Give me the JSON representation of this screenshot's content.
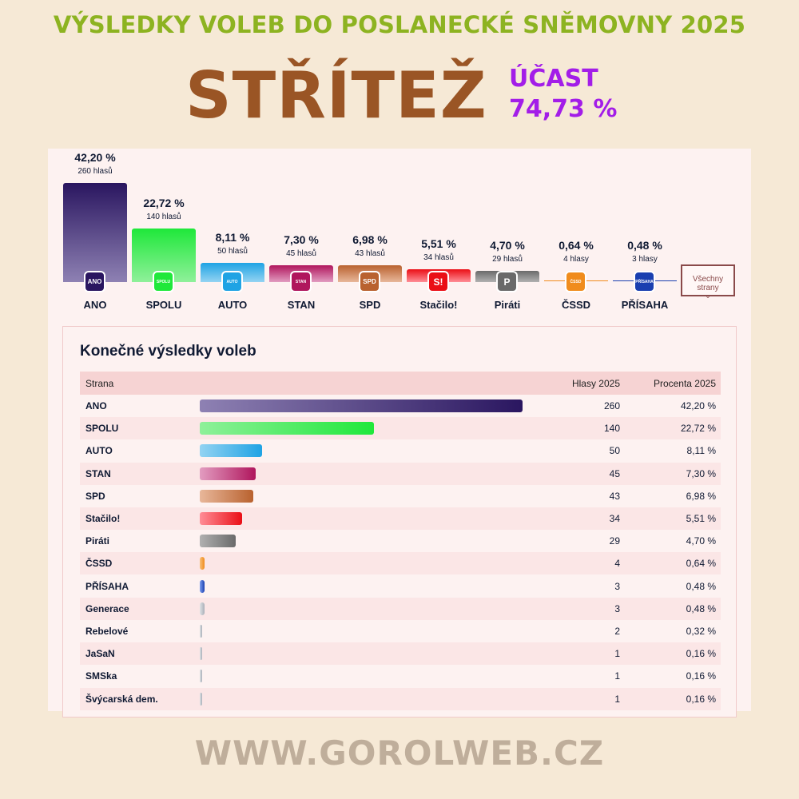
{
  "header": {
    "title": "VÝSLEDKY VOLEB DO POSLANECKÉ SNĚMOVNY 2025",
    "town": "STŘÍTEŽ",
    "turnout_label": "ÚČAST",
    "turnout_value": "74,73 %"
  },
  "top_chart_button": "Všechny strany",
  "table": {
    "title": "Konečné výsledky voleb",
    "col_party": "Strana",
    "col_votes": "Hlasy 2025",
    "col_percent": "Procenta 2025"
  },
  "colors": {
    "ANO": [
      "#8e81b3",
      "#2a1660"
    ],
    "SPOLU": [
      "#8ff09a",
      "#1fe83a"
    ],
    "AUTO": [
      "#93d3f2",
      "#1fa3e4"
    ],
    "STAN": [
      "#e29cc0",
      "#b0165d"
    ],
    "SPD": [
      "#e8b79a",
      "#b9622f"
    ],
    "Stačilo!": [
      "#ff8d96",
      "#ea0f16"
    ],
    "Piráti": [
      "#b0b0b0",
      "#6a6a6a"
    ],
    "ČSSD": [
      "#f8c07a",
      "#f08c1c"
    ],
    "PŘÍSAHA": [
      "#7d9ff0",
      "#1a3fb0"
    ],
    "Generace": [
      "#dfe2e6",
      "#aab0b8"
    ],
    "Rebelové": [
      "#dfe2e6",
      "#aab0b8"
    ],
    "JaSaN": [
      "#dfe2e6",
      "#aab0b8"
    ],
    "SMSka": [
      "#dfe2e6",
      "#aab0b8"
    ],
    "Švýcarská dem.": [
      "#dfe2e6",
      "#aab0b8"
    ]
  },
  "logos": {
    "ANO": "ANO",
    "SPOLU": "SPOLU",
    "AUTO": "AUTO",
    "STAN": "STAN",
    "SPD": "SPD",
    "Stačilo!": "S!",
    "Piráti": "P",
    "ČSSD": "ČSSD",
    "PŘÍSAHA": "PŘÍSAHA"
  },
  "chart_data": {
    "type": "bar",
    "categories": [
      "ANO",
      "SPOLU",
      "AUTO",
      "STAN",
      "SPD",
      "Stačilo!",
      "Piráti",
      "ČSSD",
      "PŘÍSAHA",
      "Generace",
      "Rebelové",
      "JaSaN",
      "SMSka",
      "Švýcarská dem."
    ],
    "series": [
      {
        "name": "Hlasy 2025",
        "values": [
          260,
          140,
          50,
          45,
          43,
          34,
          29,
          4,
          3,
          3,
          2,
          1,
          1,
          1
        ]
      },
      {
        "name": "Procenta 2025",
        "values": [
          42.2,
          22.72,
          8.11,
          7.3,
          6.98,
          5.51,
          4.7,
          0.64,
          0.48,
          0.48,
          0.32,
          0.16,
          0.16,
          0.16
        ]
      }
    ],
    "top_chart": {
      "categories": [
        "ANO",
        "SPOLU",
        "AUTO",
        "STAN",
        "SPD",
        "Stačilo!",
        "Piráti",
        "ČSSD",
        "PŘÍSAHA"
      ],
      "percent_labels": [
        "42,20 %",
        "22,72 %",
        "8,11 %",
        "7,30 %",
        "6,98 %",
        "5,51 %",
        "4,70 %",
        "0,64 %",
        "0,48 %"
      ],
      "vote_labels": [
        "260 hlasů",
        "140 hlasů",
        "50 hlasů",
        "45 hlasů",
        "43 hlasů",
        "34 hlasů",
        "29 hlasů",
        "4 hlasy",
        "3 hlasy"
      ]
    },
    "table_rows": [
      {
        "party": "ANO",
        "votes": "260",
        "percent": "42,20 %"
      },
      {
        "party": "SPOLU",
        "votes": "140",
        "percent": "22,72 %"
      },
      {
        "party": "AUTO",
        "votes": "50",
        "percent": "8,11 %"
      },
      {
        "party": "STAN",
        "votes": "45",
        "percent": "7,30 %"
      },
      {
        "party": "SPD",
        "votes": "43",
        "percent": "6,98 %"
      },
      {
        "party": "Stačilo!",
        "votes": "34",
        "percent": "5,51 %"
      },
      {
        "party": "Piráti",
        "votes": "29",
        "percent": "4,70 %"
      },
      {
        "party": "ČSSD",
        "votes": "4",
        "percent": "0,64 %"
      },
      {
        "party": "PŘÍSAHA",
        "votes": "3",
        "percent": "0,48 %"
      },
      {
        "party": "Generace",
        "votes": "3",
        "percent": "0,48 %"
      },
      {
        "party": "Rebelové",
        "votes": "2",
        "percent": "0,32 %"
      },
      {
        "party": "JaSaN",
        "votes": "1",
        "percent": "0,16 %"
      },
      {
        "party": "SMSka",
        "votes": "1",
        "percent": "0,16 %"
      },
      {
        "party": "Švýcarská dem.",
        "votes": "1",
        "percent": "0,16 %"
      }
    ]
  },
  "footer": "WWW.GOROLWEB.CZ"
}
